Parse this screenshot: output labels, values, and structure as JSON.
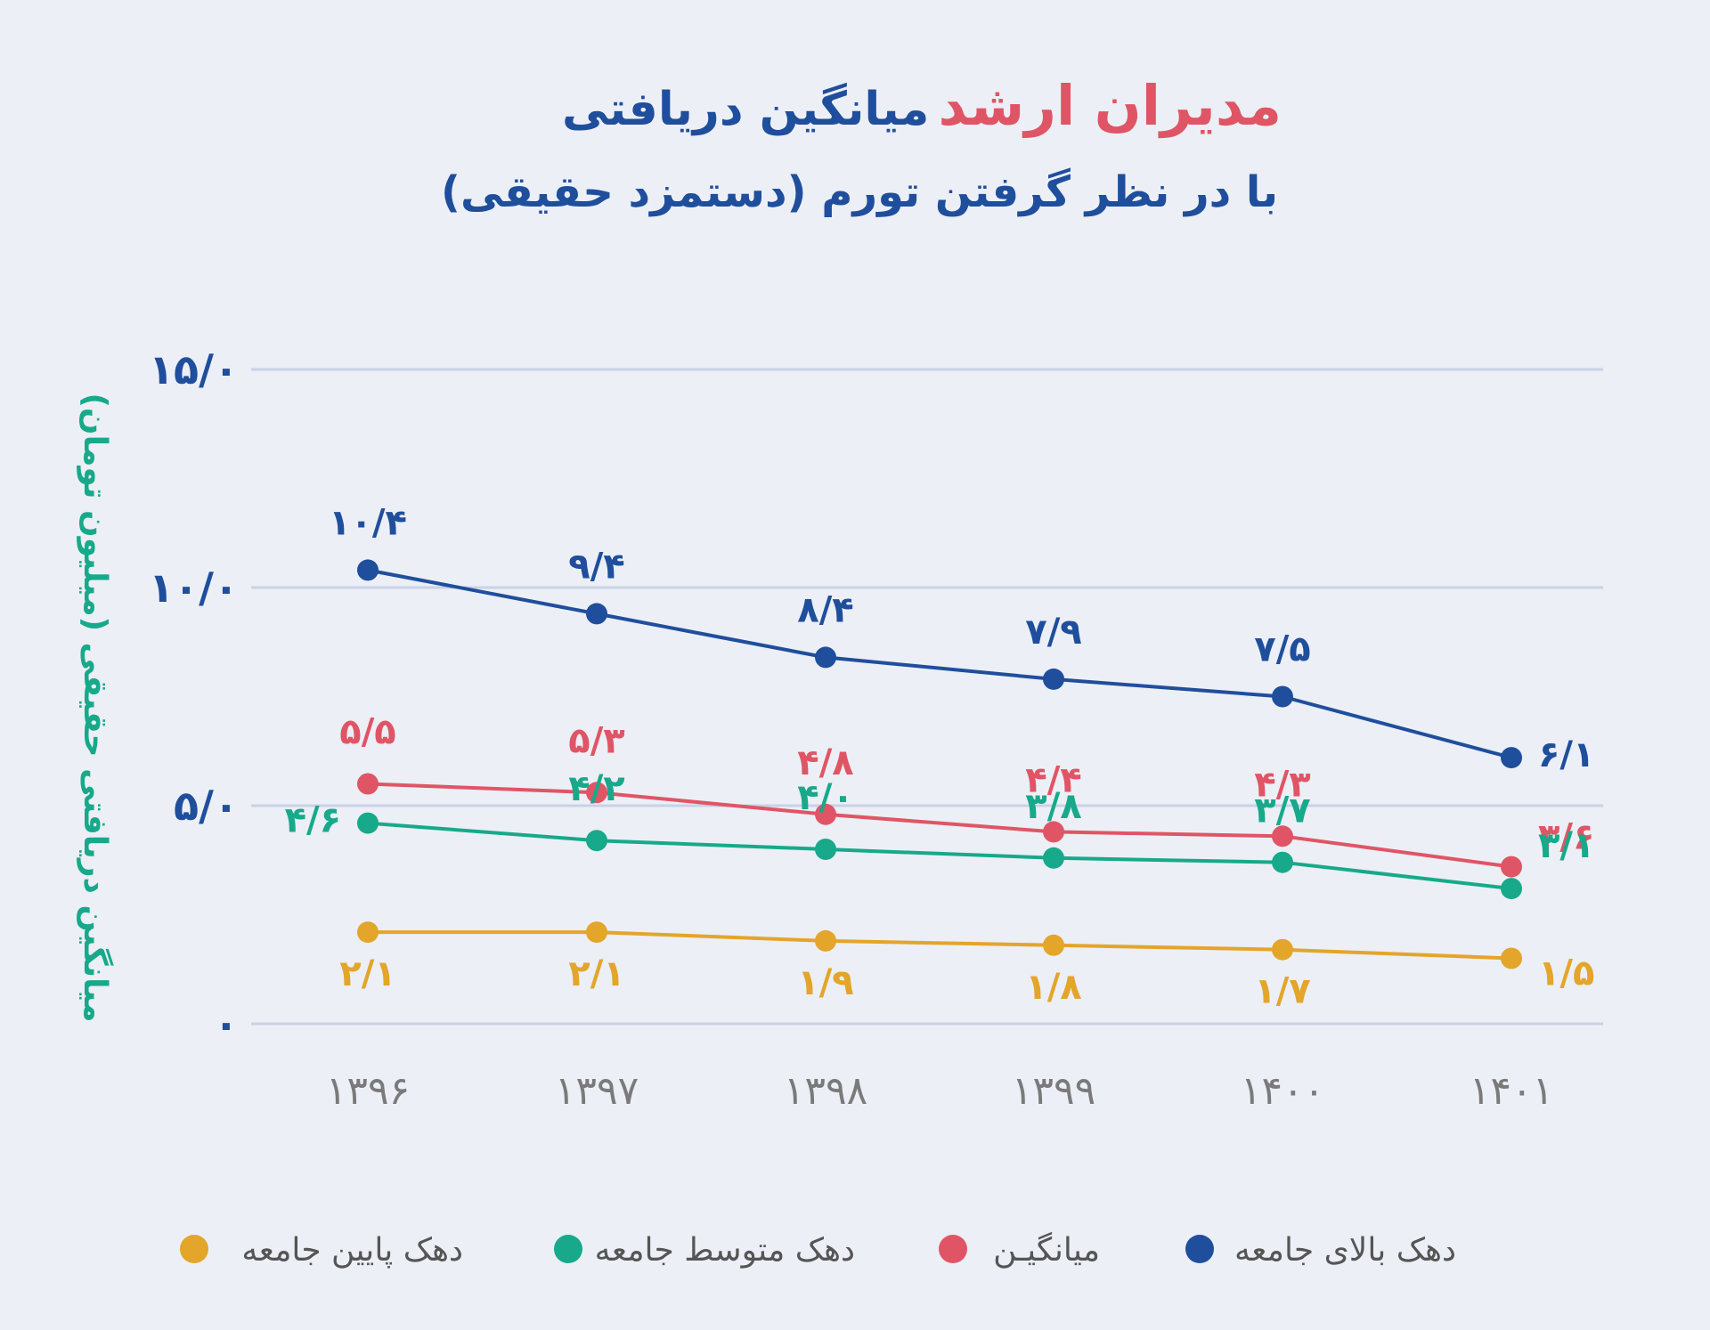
{
  "chart_data": {
    "type": "line",
    "title_part1": "میانگین دریافتی",
    "title_part2": "مدیران ارشد",
    "subtitle": "با در نظر گرفتن تورم (دستمزد حقیقی)",
    "ylabel": "میانگین دریافتی حقیقی (میلیون تومان)",
    "ylim": [
      0,
      15
    ],
    "yticks": [
      {
        "value": 0,
        "label": "۰"
      },
      {
        "value": 5,
        "label": "۵/۰"
      },
      {
        "value": 10,
        "label": "۱۰/۰"
      },
      {
        "value": 15,
        "label": "۱۵/۰"
      }
    ],
    "categories": [
      "۱۳۹۶",
      "۱۳۹۷",
      "۱۳۹۸",
      "۱۳۹۹",
      "۱۴۰۰",
      "۱۴۰۱"
    ],
    "grid": true,
    "legend_position": "bottom",
    "series": [
      {
        "name": "دهک بالای جامعه",
        "color": "#1f4e9c",
        "values": [
          10.4,
          9.4,
          8.4,
          7.9,
          7.5,
          6.1
        ],
        "labels": [
          "۱۰/۴",
          "۹/۴",
          "۸/۴",
          "۷/۹",
          "۷/۵",
          "۶/۱"
        ]
      },
      {
        "name": "میانگیـن",
        "color": "#e05565",
        "values": [
          5.5,
          5.3,
          4.8,
          4.4,
          4.3,
          3.6
        ],
        "labels": [
          "۵/۵",
          "۵/۳",
          "۴/۸",
          "۴/۴",
          "۴/۳",
          "۳/۶"
        ]
      },
      {
        "name": "دهک متوسط جامعه",
        "color": "#17a98a",
        "values": [
          4.6,
          4.2,
          4.0,
          3.8,
          3.7,
          3.1
        ],
        "labels": [
          "۴/۶",
          "۴/۲",
          "۴/۰",
          "۳/۸",
          "۳/۷",
          "۳/۱"
        ]
      },
      {
        "name": "دهک پایین جامعه",
        "color": "#e3a52a",
        "values": [
          2.1,
          2.1,
          1.9,
          1.8,
          1.7,
          1.5
        ],
        "labels": [
          "۲/۱",
          "۲/۱",
          "۱/۹",
          "۱/۸",
          "۱/۷",
          "۱/۵"
        ]
      }
    ]
  },
  "colors": {
    "background": "#eceff6",
    "title": "#1f4e9c",
    "title_highlight": "#e05565",
    "ylabel": "#17a98a",
    "axis_tick": "#1f4e9c",
    "x_tick": "#7a7a7a",
    "grid": "#c9d2e6"
  }
}
